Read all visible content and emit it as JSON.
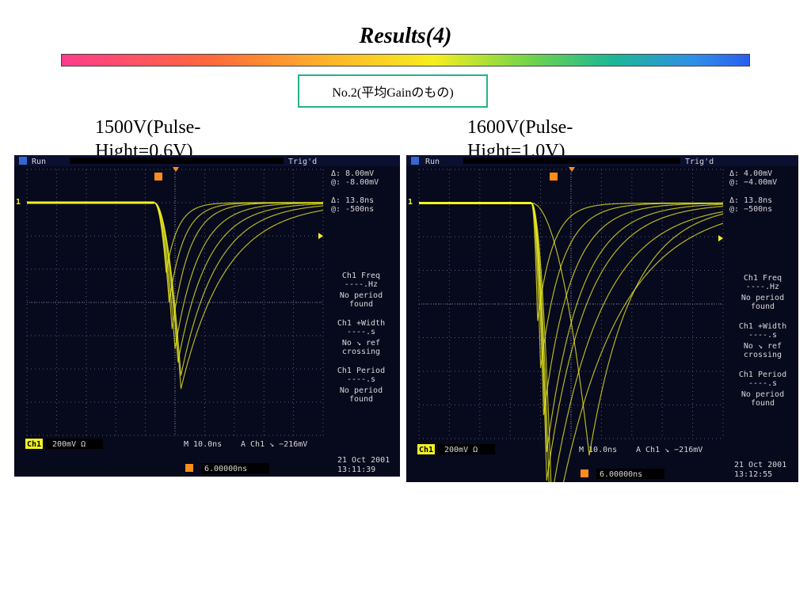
{
  "header": {
    "title": "Results(4)",
    "note": "No.2(平均Gainのもの)"
  },
  "labels": {
    "left": "1500V(Pulse-Hight=0.6V)",
    "right": "1600V(Pulse-Hight=1.0V)"
  },
  "scopes": [
    {
      "run": "Run",
      "trig": "Trig'd",
      "meas": [
        "Δ:  8.00mV",
        "@: -8.00mV",
        "Δ:  13.8ns",
        "@:  -500ns"
      ],
      "stats": [
        "Ch1 Freq",
        "----.Hz",
        "No period",
        "found",
        "Ch1 +Width",
        "----.s",
        "No ↘ ref",
        "crossing",
        "Ch1 Period",
        "----.s",
        "No period",
        "found"
      ],
      "ch": "Ch1",
      "volts": "200mV Ω",
      "timebase": "M 10.0ns",
      "trigger": "A  Ch1  ↘ −216mV",
      "pos": "6.00000ns",
      "date": "21 Oct  2001",
      "time": "13:11:39"
    },
    {
      "run": "Run",
      "trig": "Trig'd",
      "meas": [
        "Δ:  4.00mV",
        "@: −4.00mV",
        "Δ:  13.8ns",
        "@:  −500ns"
      ],
      "stats": [
        "Ch1 Freq",
        "----.Hz",
        "No period",
        "found",
        "Ch1 +Width",
        "----.s",
        "No ↘ ref",
        "crossing",
        "Ch1 Period",
        "----.s",
        "No period",
        "found"
      ],
      "ch": "Ch1",
      "volts": "200mV Ω",
      "timebase": "M 10.0ns",
      "trigger": "A  Ch1  ↘ −216mV",
      "pos": "6.00000ns",
      "date": "21 Oct  2001",
      "time": "13:12:55"
    }
  ],
  "chart_data": [
    {
      "type": "line",
      "xlabel": "",
      "ylabel": "",
      "x_unit": "ns",
      "y_unit": "mV",
      "grid": true,
      "xlim": [
        0,
        100
      ],
      "ylim": [
        -800,
        800
      ],
      "baseline": 600,
      "onset": 43,
      "series": [
        {
          "dip_time": 47,
          "amp": 420,
          "rise_tau": 4
        },
        {
          "dip_time": 48,
          "amp": 600,
          "rise_tau": 5
        },
        {
          "dip_time": 49,
          "amp": 760,
          "rise_tau": 6
        },
        {
          "dip_time": 50,
          "amp": 880,
          "rise_tau": 8
        },
        {
          "dip_time": 51,
          "amp": 960,
          "rise_tau": 10
        },
        {
          "dip_time": 52,
          "amp": 1040,
          "rise_tau": 12
        },
        {
          "dip_time": 52,
          "amp": 1120,
          "rise_tau": 15
        }
      ],
      "color": "#f2f220"
    },
    {
      "type": "line",
      "xlabel": "",
      "ylabel": "",
      "x_unit": "ns",
      "y_unit": "mV",
      "grid": true,
      "xlim": [
        0,
        100
      ],
      "ylim": [
        -800,
        800
      ],
      "baseline": 600,
      "onset": 37,
      "series": [
        {
          "dip_time": 39,
          "amp": 700,
          "rise_tau": 5
        },
        {
          "dip_time": 40,
          "amp": 980,
          "rise_tau": 7
        },
        {
          "dip_time": 41,
          "amp": 1260,
          "rise_tau": 9
        },
        {
          "dip_time": 42,
          "amp": 1480,
          "rise_tau": 11
        },
        {
          "dip_time": 42,
          "amp": 1650,
          "rise_tau": 13
        },
        {
          "dip_time": 43,
          "amp": 1820,
          "rise_tau": 16
        },
        {
          "dip_time": 44,
          "amp": 1980,
          "rise_tau": 20
        },
        {
          "dip_time": 56,
          "amp": 1500,
          "rise_tau": 14
        }
      ],
      "color": "#f2f220"
    }
  ]
}
